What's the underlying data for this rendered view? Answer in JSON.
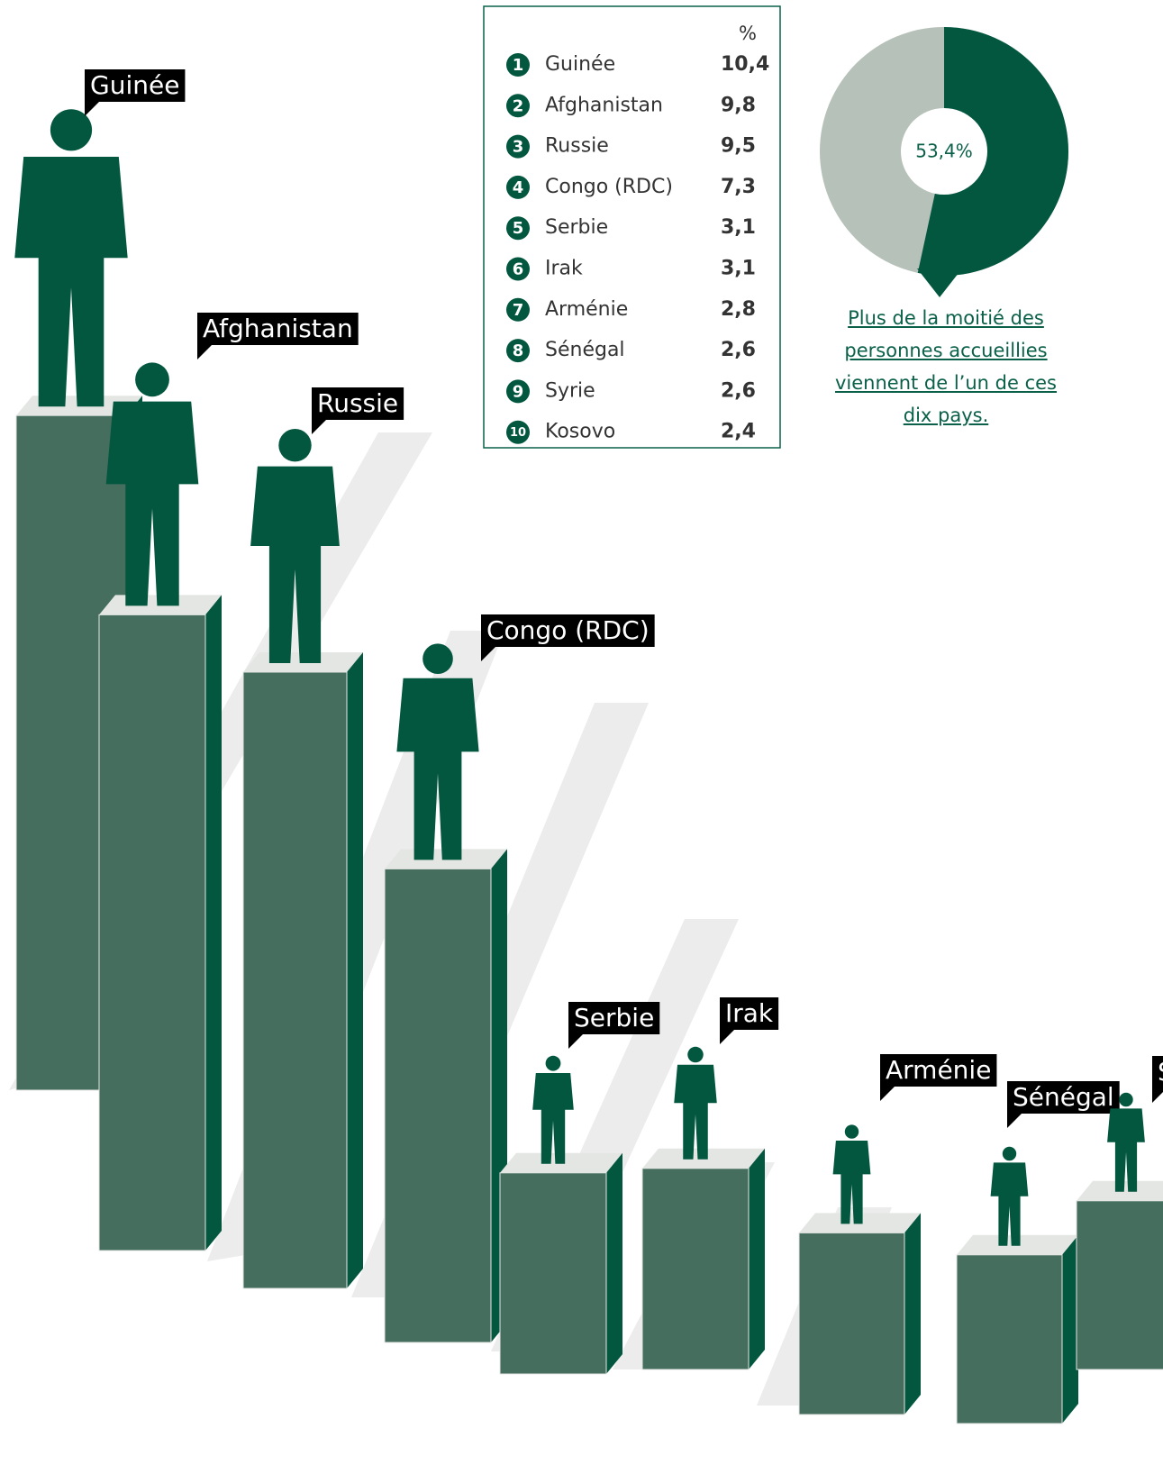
{
  "chart_data": {
    "type": "bar",
    "categories": [
      "Guinée",
      "Afghanistan",
      "Russie",
      "Congo (RDC)",
      "Serbie",
      "Irak",
      "Arménie",
      "Sénégal",
      "Syrie",
      "Kosovo"
    ],
    "values": [
      10.4,
      9.8,
      9.5,
      7.3,
      3.1,
      3.1,
      2.8,
      2.6,
      2.6,
      2.4
    ],
    "value_labels": [
      "10,4",
      "9,8",
      "9,5",
      "7,3",
      "3,1",
      "3,1",
      "2,8",
      "2,6",
      "2,6",
      "2,4"
    ],
    "unit_header": "%",
    "color": "#456e5e",
    "pie_value": 53.4,
    "pie_label": "53,4%",
    "pie_color": "#03573f",
    "pie_rest_color": "#b6c1b9",
    "note": "Plus de la moitié des personnes accueillies viennent de l’un de ces dix pays."
  }
}
